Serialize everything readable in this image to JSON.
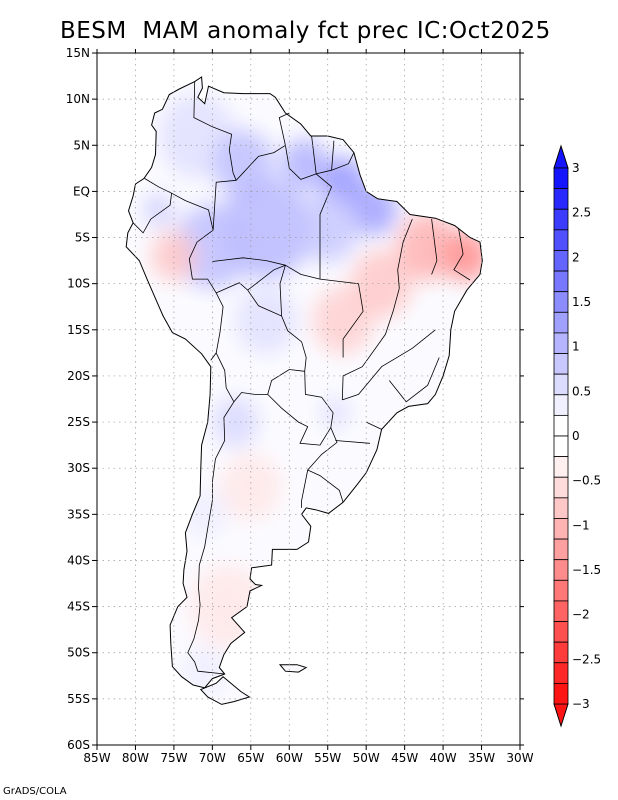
{
  "title": "BESM  MAM anomaly fct prec IC:Oct2025",
  "footer": "GrADS/COLA",
  "map": {
    "lon_range": [
      -85,
      -30
    ],
    "lat_range": [
      -60,
      15
    ],
    "lat_ticks": [
      {
        "value": 15,
        "label": "15N"
      },
      {
        "value": 10,
        "label": "10N"
      },
      {
        "value": 5,
        "label": "5N"
      },
      {
        "value": 0,
        "label": "EQ"
      },
      {
        "value": -5,
        "label": "5S"
      },
      {
        "value": -10,
        "label": "10S"
      },
      {
        "value": -15,
        "label": "15S"
      },
      {
        "value": -20,
        "label": "20S"
      },
      {
        "value": -25,
        "label": "25S"
      },
      {
        "value": -30,
        "label": "30S"
      },
      {
        "value": -35,
        "label": "35S"
      },
      {
        "value": -40,
        "label": "40S"
      },
      {
        "value": -45,
        "label": "45S"
      },
      {
        "value": -50,
        "label": "50S"
      },
      {
        "value": -55,
        "label": "55S"
      },
      {
        "value": -60,
        "label": "60S"
      }
    ],
    "lon_ticks": [
      {
        "value": -85,
        "label": "85W"
      },
      {
        "value": -80,
        "label": "80W"
      },
      {
        "value": -75,
        "label": "75W"
      },
      {
        "value": -70,
        "label": "70W"
      },
      {
        "value": -65,
        "label": "65W"
      },
      {
        "value": -60,
        "label": "60W"
      },
      {
        "value": -55,
        "label": "55W"
      },
      {
        "value": -50,
        "label": "50W"
      },
      {
        "value": -45,
        "label": "45W"
      },
      {
        "value": -40,
        "label": "40W"
      },
      {
        "value": -35,
        "label": "35W"
      },
      {
        "value": -30,
        "label": "30W"
      }
    ]
  },
  "colorbar": {
    "labels": [
      "3",
      "2.5",
      "2",
      "1.5",
      "1",
      "0.5",
      "0",
      "−0.5",
      "−1",
      "−1.5",
      "−2",
      "−2.5",
      "−3"
    ],
    "colors": [
      "#1414ff",
      "#2828ff",
      "#3c3cff",
      "#5050ff",
      "#6464ff",
      "#7878ff",
      "#8c8cff",
      "#a0a0ff",
      "#b4b4ff",
      "#c8c8ff",
      "#dcdcff",
      "#f0f0ff",
      "#ffffff",
      "#ffffff",
      "#fff0f0",
      "#ffdcdc",
      "#ffc8c8",
      "#ffb4b4",
      "#ffa0a0",
      "#ff8c8c",
      "#ff7878",
      "#ff6464",
      "#ff5050",
      "#ff3c3c",
      "#ff2828",
      "#ff1414"
    ]
  },
  "anomalies": [
    {
      "lon": -72,
      "lat": 6,
      "value": 0.4,
      "r": 5
    },
    {
      "lon": -66,
      "lat": 3,
      "value": 0.8,
      "r": 4
    },
    {
      "lon": -63,
      "lat": -4,
      "value": 0.9,
      "r": 6
    },
    {
      "lon": -70,
      "lat": -6,
      "value": 0.8,
      "r": 5
    },
    {
      "lon": -58,
      "lat": 3,
      "value": 1.0,
      "r": 3
    },
    {
      "lon": -53,
      "lat": 1,
      "value": 1.3,
      "r": 3
    },
    {
      "lon": -49,
      "lat": -2,
      "value": 1.2,
      "r": 3
    },
    {
      "lon": -55,
      "lat": -4,
      "value": 0.7,
      "r": 4
    },
    {
      "lon": -77,
      "lat": -2,
      "value": 0.6,
      "r": 2
    },
    {
      "lon": -75,
      "lat": -7,
      "value": -0.7,
      "r": 3
    },
    {
      "lon": -42,
      "lat": -6,
      "value": -1.0,
      "r": 4
    },
    {
      "lon": -37,
      "lat": -7,
      "value": -1.4,
      "r": 3
    },
    {
      "lon": -48,
      "lat": -10,
      "value": -0.7,
      "r": 4
    },
    {
      "lon": -53,
      "lat": -14,
      "value": -0.6,
      "r": 4
    },
    {
      "lon": -63,
      "lat": -14,
      "value": 0.4,
      "r": 4
    },
    {
      "lon": -67,
      "lat": -25,
      "value": 0.5,
      "r": 3
    },
    {
      "lon": -54,
      "lat": -24,
      "value": 0.4,
      "r": 2
    },
    {
      "lon": -65,
      "lat": -32,
      "value": -0.3,
      "r": 4
    },
    {
      "lon": -71,
      "lat": -35,
      "value": 0.2,
      "r": 3
    },
    {
      "lon": -68,
      "lat": -45,
      "value": -0.3,
      "r": 5
    },
    {
      "lon": -71,
      "lat": -52,
      "value": 0.2,
      "r": 3
    }
  ]
}
